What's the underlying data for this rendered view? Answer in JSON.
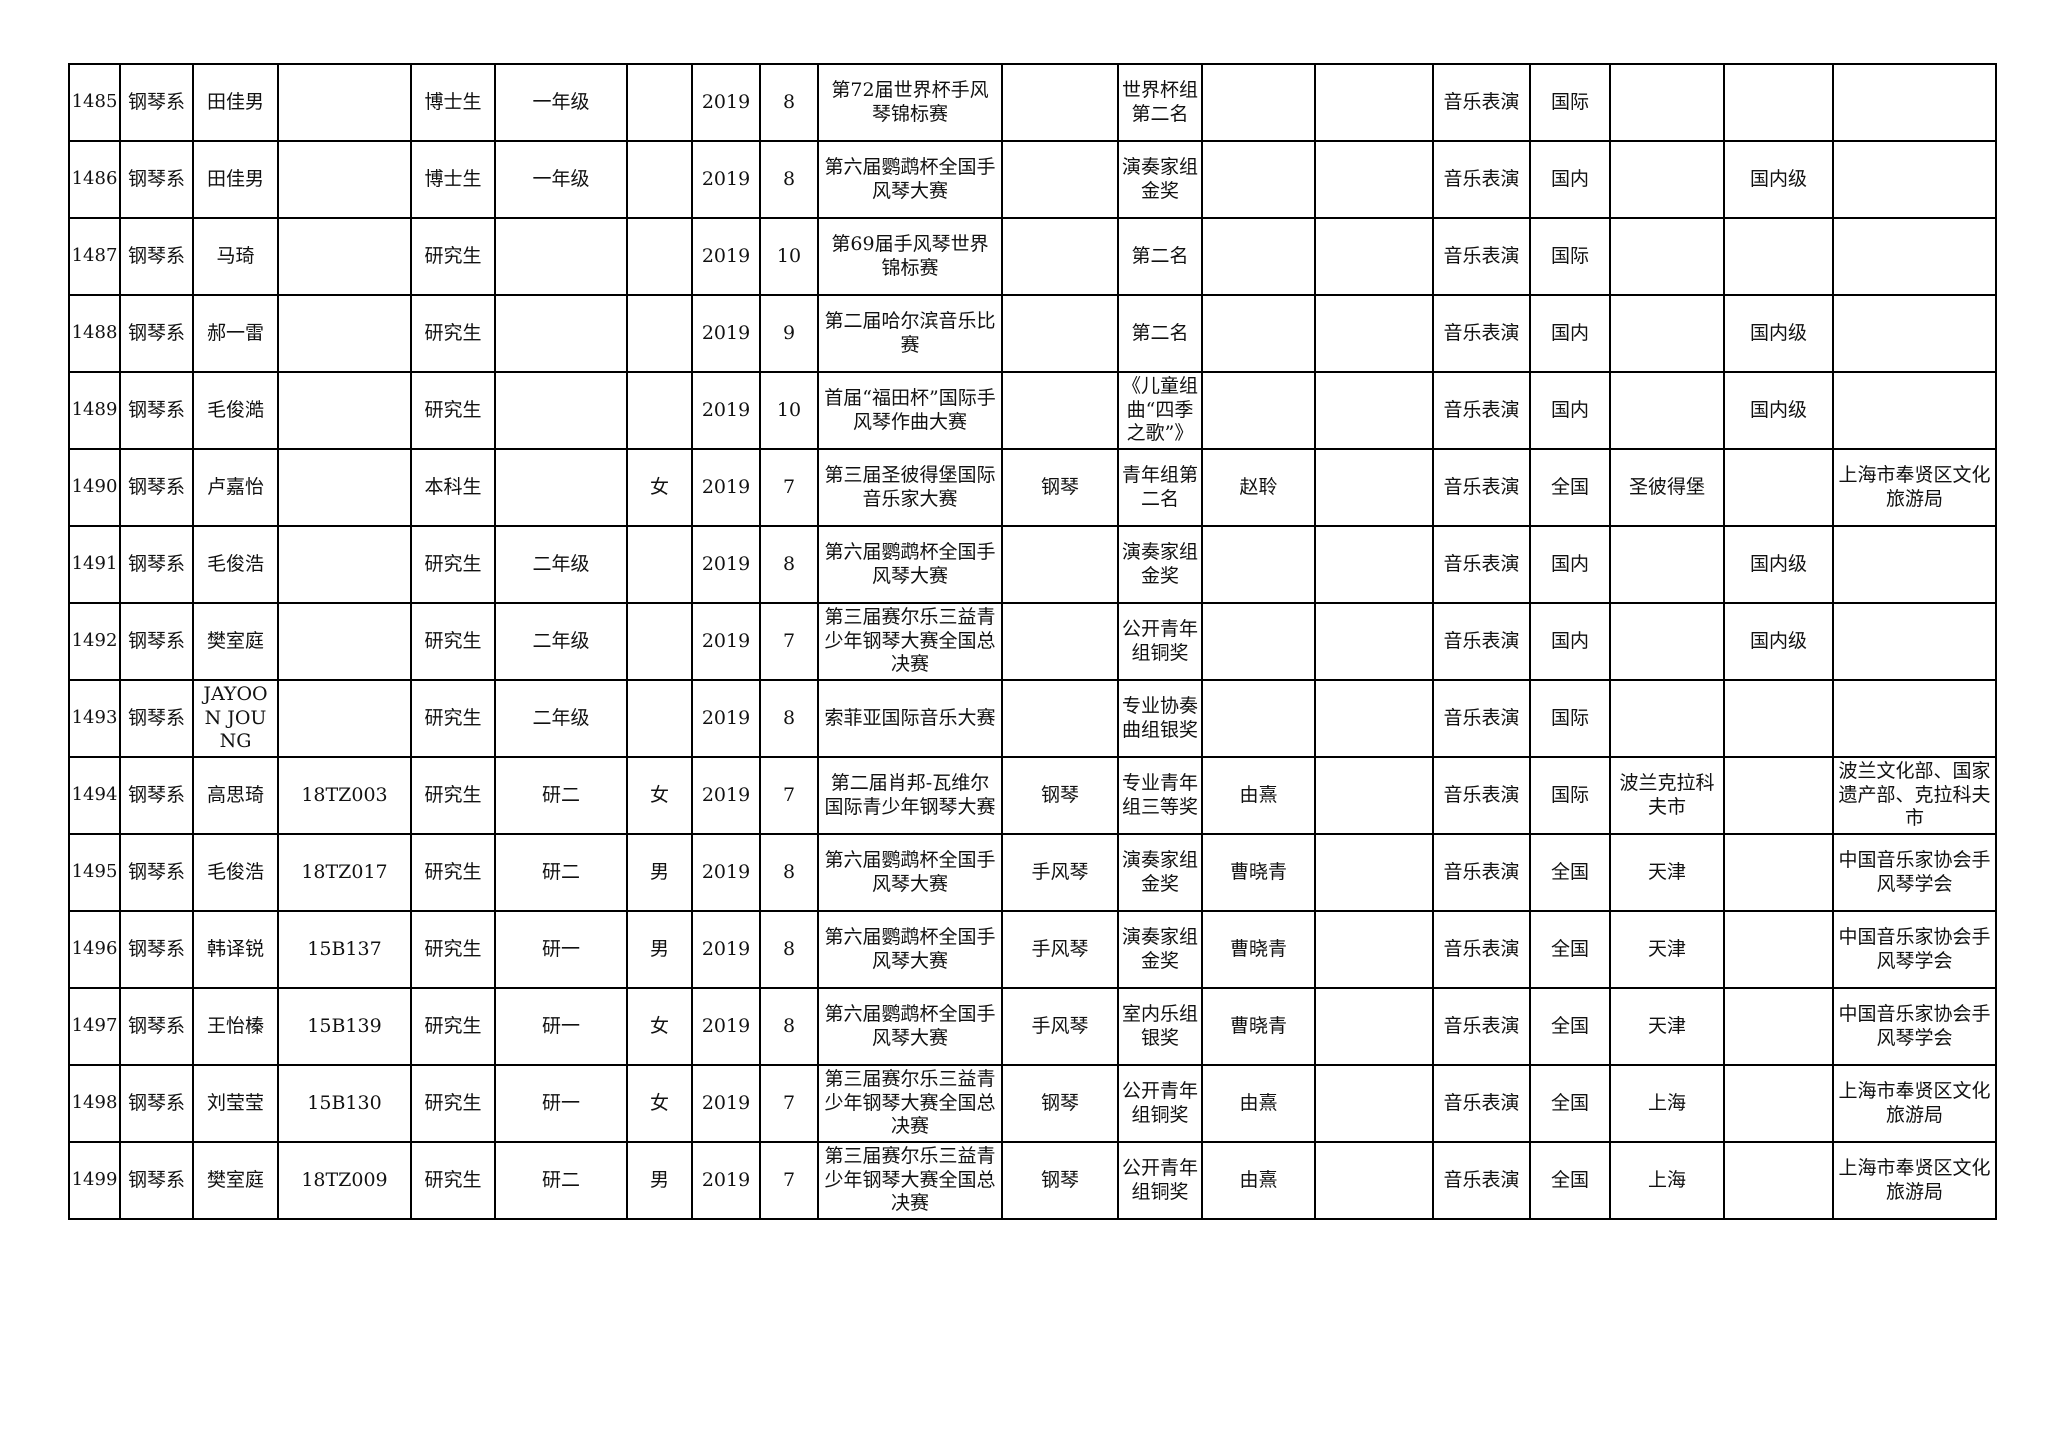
{
  "table": {
    "rows": [
      [
        "1485",
        "钢琴系",
        "田佳男",
        "",
        "博士生",
        "一年级",
        "",
        "2019",
        "8",
        "第72届世界杯手风琴锦标赛",
        "",
        "世界杯组第二名",
        "",
        "",
        "音乐表演",
        "国际",
        "",
        "",
        ""
      ],
      [
        "1486",
        "钢琴系",
        "田佳男",
        "",
        "博士生",
        "一年级",
        "",
        "2019",
        "8",
        "第六届鹦鹉杯全国手风琴大赛",
        "",
        "演奏家组金奖",
        "",
        "",
        "音乐表演",
        "国内",
        "",
        "国内级",
        ""
      ],
      [
        "1487",
        "钢琴系",
        "马琦",
        "",
        "研究生",
        "",
        "",
        "2019",
        "10",
        "第69届手风琴世界锦标赛",
        "",
        "第二名",
        "",
        "",
        "音乐表演",
        "国际",
        "",
        "",
        ""
      ],
      [
        "1488",
        "钢琴系",
        "郝一雷",
        "",
        "研究生",
        "",
        "",
        "2019",
        "9",
        "第二届哈尔滨音乐比赛",
        "",
        "第二名",
        "",
        "",
        "音乐表演",
        "国内",
        "",
        "国内级",
        ""
      ],
      [
        "1489",
        "钢琴系",
        "毛俊澔",
        "",
        "研究生",
        "",
        "",
        "2019",
        "10",
        "首届“福田杯”国际手风琴作曲大赛",
        "",
        "《儿童组曲“四季之歌”》",
        "",
        "",
        "音乐表演",
        "国内",
        "",
        "国内级",
        ""
      ],
      [
        "1490",
        "钢琴系",
        "卢嘉怡",
        "",
        "本科生",
        "",
        "女",
        "2019",
        "7",
        "第三届圣彼得堡国际音乐家大赛",
        "钢琴",
        "青年组第二名",
        "赵聆",
        "",
        "音乐表演",
        "全国",
        "圣彼得堡",
        "",
        "上海市奉贤区文化旅游局"
      ],
      [
        "1491",
        "钢琴系",
        "毛俊浩",
        "",
        "研究生",
        "二年级",
        "",
        "2019",
        "8",
        "第六届鹦鹉杯全国手风琴大赛",
        "",
        "演奏家组金奖",
        "",
        "",
        "音乐表演",
        "国内",
        "",
        "国内级",
        ""
      ],
      [
        "1492",
        "钢琴系",
        "樊室庭",
        "",
        "研究生",
        "二年级",
        "",
        "2019",
        "7",
        "第三届赛尔乐三益青少年钢琴大赛全国总决赛",
        "",
        "公开青年组铜奖",
        "",
        "",
        "音乐表演",
        "国内",
        "",
        "国内级",
        ""
      ],
      [
        "1493",
        "钢琴系",
        "JAYOON JOUNG",
        "",
        "研究生",
        "二年级",
        "",
        "2019",
        "8",
        "索菲亚国际音乐大赛",
        "",
        "专业协奏曲组银奖",
        "",
        "",
        "音乐表演",
        "国际",
        "",
        "",
        ""
      ],
      [
        "1494",
        "钢琴系",
        "高思琦",
        "18TZ003",
        "研究生",
        "研二",
        "女",
        "2019",
        "7",
        "第二届肖邦-瓦维尔国际青少年钢琴大赛",
        "钢琴",
        "专业青年组三等奖",
        "由熹",
        "",
        "音乐表演",
        "国际",
        "波兰克拉科夫市",
        "",
        "波兰文化部、国家遗产部、克拉科夫市"
      ],
      [
        "1495",
        "钢琴系",
        "毛俊浩",
        "18TZ017",
        "研究生",
        "研二",
        "男",
        "2019",
        "8",
        "第六届鹦鹉杯全国手风琴大赛",
        "手风琴",
        "演奏家组金奖",
        "曹晓青",
        "",
        "音乐表演",
        "全国",
        "天津",
        "",
        "中国音乐家协会手风琴学会"
      ],
      [
        "1496",
        "钢琴系",
        "韩译锐",
        "15B137",
        "研究生",
        "研一",
        "男",
        "2019",
        "8",
        "第六届鹦鹉杯全国手风琴大赛",
        "手风琴",
        "演奏家组金奖",
        "曹晓青",
        "",
        "音乐表演",
        "全国",
        "天津",
        "",
        "中国音乐家协会手风琴学会"
      ],
      [
        "1497",
        "钢琴系",
        "王怡榛",
        "15B139",
        "研究生",
        "研一",
        "女",
        "2019",
        "8",
        "第六届鹦鹉杯全国手风琴大赛",
        "手风琴",
        "室内乐组银奖",
        "曹晓青",
        "",
        "音乐表演",
        "全国",
        "天津",
        "",
        "中国音乐家协会手风琴学会"
      ],
      [
        "1498",
        "钢琴系",
        "刘莹莹",
        "15B130",
        "研究生",
        "研一",
        "女",
        "2019",
        "7",
        "第三届赛尔乐三益青少年钢琴大赛全国总决赛",
        "钢琴",
        "公开青年组铜奖",
        "由熹",
        "",
        "音乐表演",
        "全国",
        "上海",
        "",
        "上海市奉贤区文化旅游局"
      ],
      [
        "1499",
        "钢琴系",
        "樊室庭",
        "18TZ009",
        "研究生",
        "研二",
        "男",
        "2019",
        "7",
        "第三届赛尔乐三益青少年钢琴大赛全国总决赛",
        "钢琴",
        "公开青年组铜奖",
        "由熹",
        "",
        "音乐表演",
        "全国",
        "上海",
        "",
        "上海市奉贤区文化旅游局"
      ]
    ]
  }
}
